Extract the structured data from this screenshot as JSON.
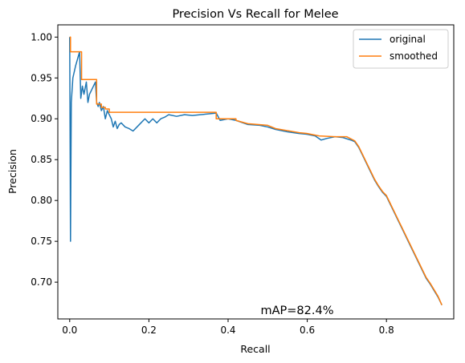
{
  "chart_data": {
    "type": "line",
    "title": "Precision Vs Recall for Melee",
    "xlabel": "Recall",
    "ylabel": "Precision",
    "xlim": [
      -0.03,
      0.97
    ],
    "ylim": [
      0.655,
      1.015
    ],
    "xticks": [
      0.0,
      0.2,
      0.4,
      0.6,
      0.8
    ],
    "xtick_labels": [
      "0.0",
      "0.2",
      "0.4",
      "0.6",
      "0.8"
    ],
    "yticks": [
      0.7,
      0.75,
      0.8,
      0.85,
      0.9,
      0.95,
      1.0
    ],
    "ytick_labels": [
      "0.70",
      "0.75",
      "0.80",
      "0.85",
      "0.90",
      "0.95",
      "1.00"
    ],
    "grid": false,
    "legend_position": "top-right",
    "annotation": "mAP=82.4%",
    "series": [
      {
        "name": "original",
        "color": "#1f77b4",
        "points": [
          [
            0.0,
            1.0
          ],
          [
            0.002,
            0.75
          ],
          [
            0.004,
            0.92
          ],
          [
            0.008,
            0.95
          ],
          [
            0.015,
            0.965
          ],
          [
            0.025,
            0.982
          ],
          [
            0.028,
            0.925
          ],
          [
            0.032,
            0.94
          ],
          [
            0.036,
            0.93
          ],
          [
            0.042,
            0.945
          ],
          [
            0.046,
            0.92
          ],
          [
            0.05,
            0.93
          ],
          [
            0.055,
            0.935
          ],
          [
            0.06,
            0.94
          ],
          [
            0.065,
            0.945
          ],
          [
            0.068,
            0.92
          ],
          [
            0.072,
            0.915
          ],
          [
            0.075,
            0.92
          ],
          [
            0.08,
            0.91
          ],
          [
            0.085,
            0.915
          ],
          [
            0.09,
            0.9
          ],
          [
            0.095,
            0.91
          ],
          [
            0.1,
            0.905
          ],
          [
            0.105,
            0.9
          ],
          [
            0.11,
            0.89
          ],
          [
            0.115,
            0.897
          ],
          [
            0.12,
            0.888
          ],
          [
            0.125,
            0.893
          ],
          [
            0.13,
            0.895
          ],
          [
            0.14,
            0.89
          ],
          [
            0.15,
            0.888
          ],
          [
            0.16,
            0.885
          ],
          [
            0.17,
            0.89
          ],
          [
            0.18,
            0.895
          ],
          [
            0.19,
            0.9
          ],
          [
            0.2,
            0.895
          ],
          [
            0.21,
            0.9
          ],
          [
            0.22,
            0.895
          ],
          [
            0.23,
            0.9
          ],
          [
            0.24,
            0.902
          ],
          [
            0.25,
            0.905
          ],
          [
            0.27,
            0.903
          ],
          [
            0.29,
            0.905
          ],
          [
            0.31,
            0.904
          ],
          [
            0.33,
            0.905
          ],
          [
            0.35,
            0.906
          ],
          [
            0.37,
            0.907
          ],
          [
            0.38,
            0.898
          ],
          [
            0.4,
            0.9
          ],
          [
            0.42,
            0.898
          ],
          [
            0.45,
            0.893
          ],
          [
            0.48,
            0.892
          ],
          [
            0.5,
            0.89
          ],
          [
            0.52,
            0.887
          ],
          [
            0.55,
            0.884
          ],
          [
            0.58,
            0.882
          ],
          [
            0.6,
            0.881
          ],
          [
            0.62,
            0.879
          ],
          [
            0.635,
            0.874
          ],
          [
            0.65,
            0.876
          ],
          [
            0.67,
            0.878
          ],
          [
            0.69,
            0.877
          ],
          [
            0.71,
            0.874
          ],
          [
            0.72,
            0.872
          ],
          [
            0.73,
            0.865
          ],
          [
            0.74,
            0.855
          ],
          [
            0.75,
            0.845
          ],
          [
            0.76,
            0.835
          ],
          [
            0.77,
            0.825
          ],
          [
            0.78,
            0.817
          ],
          [
            0.79,
            0.81
          ],
          [
            0.8,
            0.805
          ],
          [
            0.81,
            0.795
          ],
          [
            0.82,
            0.785
          ],
          [
            0.83,
            0.775
          ],
          [
            0.84,
            0.765
          ],
          [
            0.85,
            0.755
          ],
          [
            0.86,
            0.745
          ],
          [
            0.87,
            0.735
          ],
          [
            0.88,
            0.725
          ],
          [
            0.89,
            0.715
          ],
          [
            0.9,
            0.705
          ],
          [
            0.91,
            0.698
          ],
          [
            0.92,
            0.69
          ],
          [
            0.93,
            0.682
          ],
          [
            0.94,
            0.672
          ]
        ]
      },
      {
        "name": "smoothed",
        "color": "#ff7f0e",
        "points": [
          [
            0.0,
            1.0
          ],
          [
            0.002,
            1.0
          ],
          [
            0.002,
            0.982
          ],
          [
            0.03,
            0.982
          ],
          [
            0.03,
            0.948
          ],
          [
            0.068,
            0.948
          ],
          [
            0.068,
            0.918
          ],
          [
            0.08,
            0.918
          ],
          [
            0.08,
            0.914
          ],
          [
            0.09,
            0.914
          ],
          [
            0.09,
            0.912
          ],
          [
            0.1,
            0.912
          ],
          [
            0.1,
            0.908
          ],
          [
            0.37,
            0.908
          ],
          [
            0.37,
            0.9
          ],
          [
            0.42,
            0.9
          ],
          [
            0.42,
            0.898
          ],
          [
            0.45,
            0.894
          ],
          [
            0.5,
            0.892
          ],
          [
            0.52,
            0.888
          ],
          [
            0.58,
            0.883
          ],
          [
            0.6,
            0.882
          ],
          [
            0.63,
            0.879
          ],
          [
            0.67,
            0.878
          ],
          [
            0.7,
            0.878
          ],
          [
            0.72,
            0.873
          ],
          [
            0.73,
            0.866
          ],
          [
            0.74,
            0.856
          ],
          [
            0.75,
            0.846
          ],
          [
            0.76,
            0.836
          ],
          [
            0.77,
            0.826
          ],
          [
            0.78,
            0.818
          ],
          [
            0.79,
            0.811
          ],
          [
            0.8,
            0.806
          ],
          [
            0.81,
            0.796
          ],
          [
            0.82,
            0.786
          ],
          [
            0.83,
            0.776
          ],
          [
            0.84,
            0.766
          ],
          [
            0.85,
            0.756
          ],
          [
            0.86,
            0.746
          ],
          [
            0.87,
            0.736
          ],
          [
            0.88,
            0.726
          ],
          [
            0.89,
            0.716
          ],
          [
            0.9,
            0.706
          ],
          [
            0.91,
            0.699
          ],
          [
            0.92,
            0.691
          ],
          [
            0.93,
            0.683
          ],
          [
            0.94,
            0.672
          ]
        ]
      }
    ]
  }
}
